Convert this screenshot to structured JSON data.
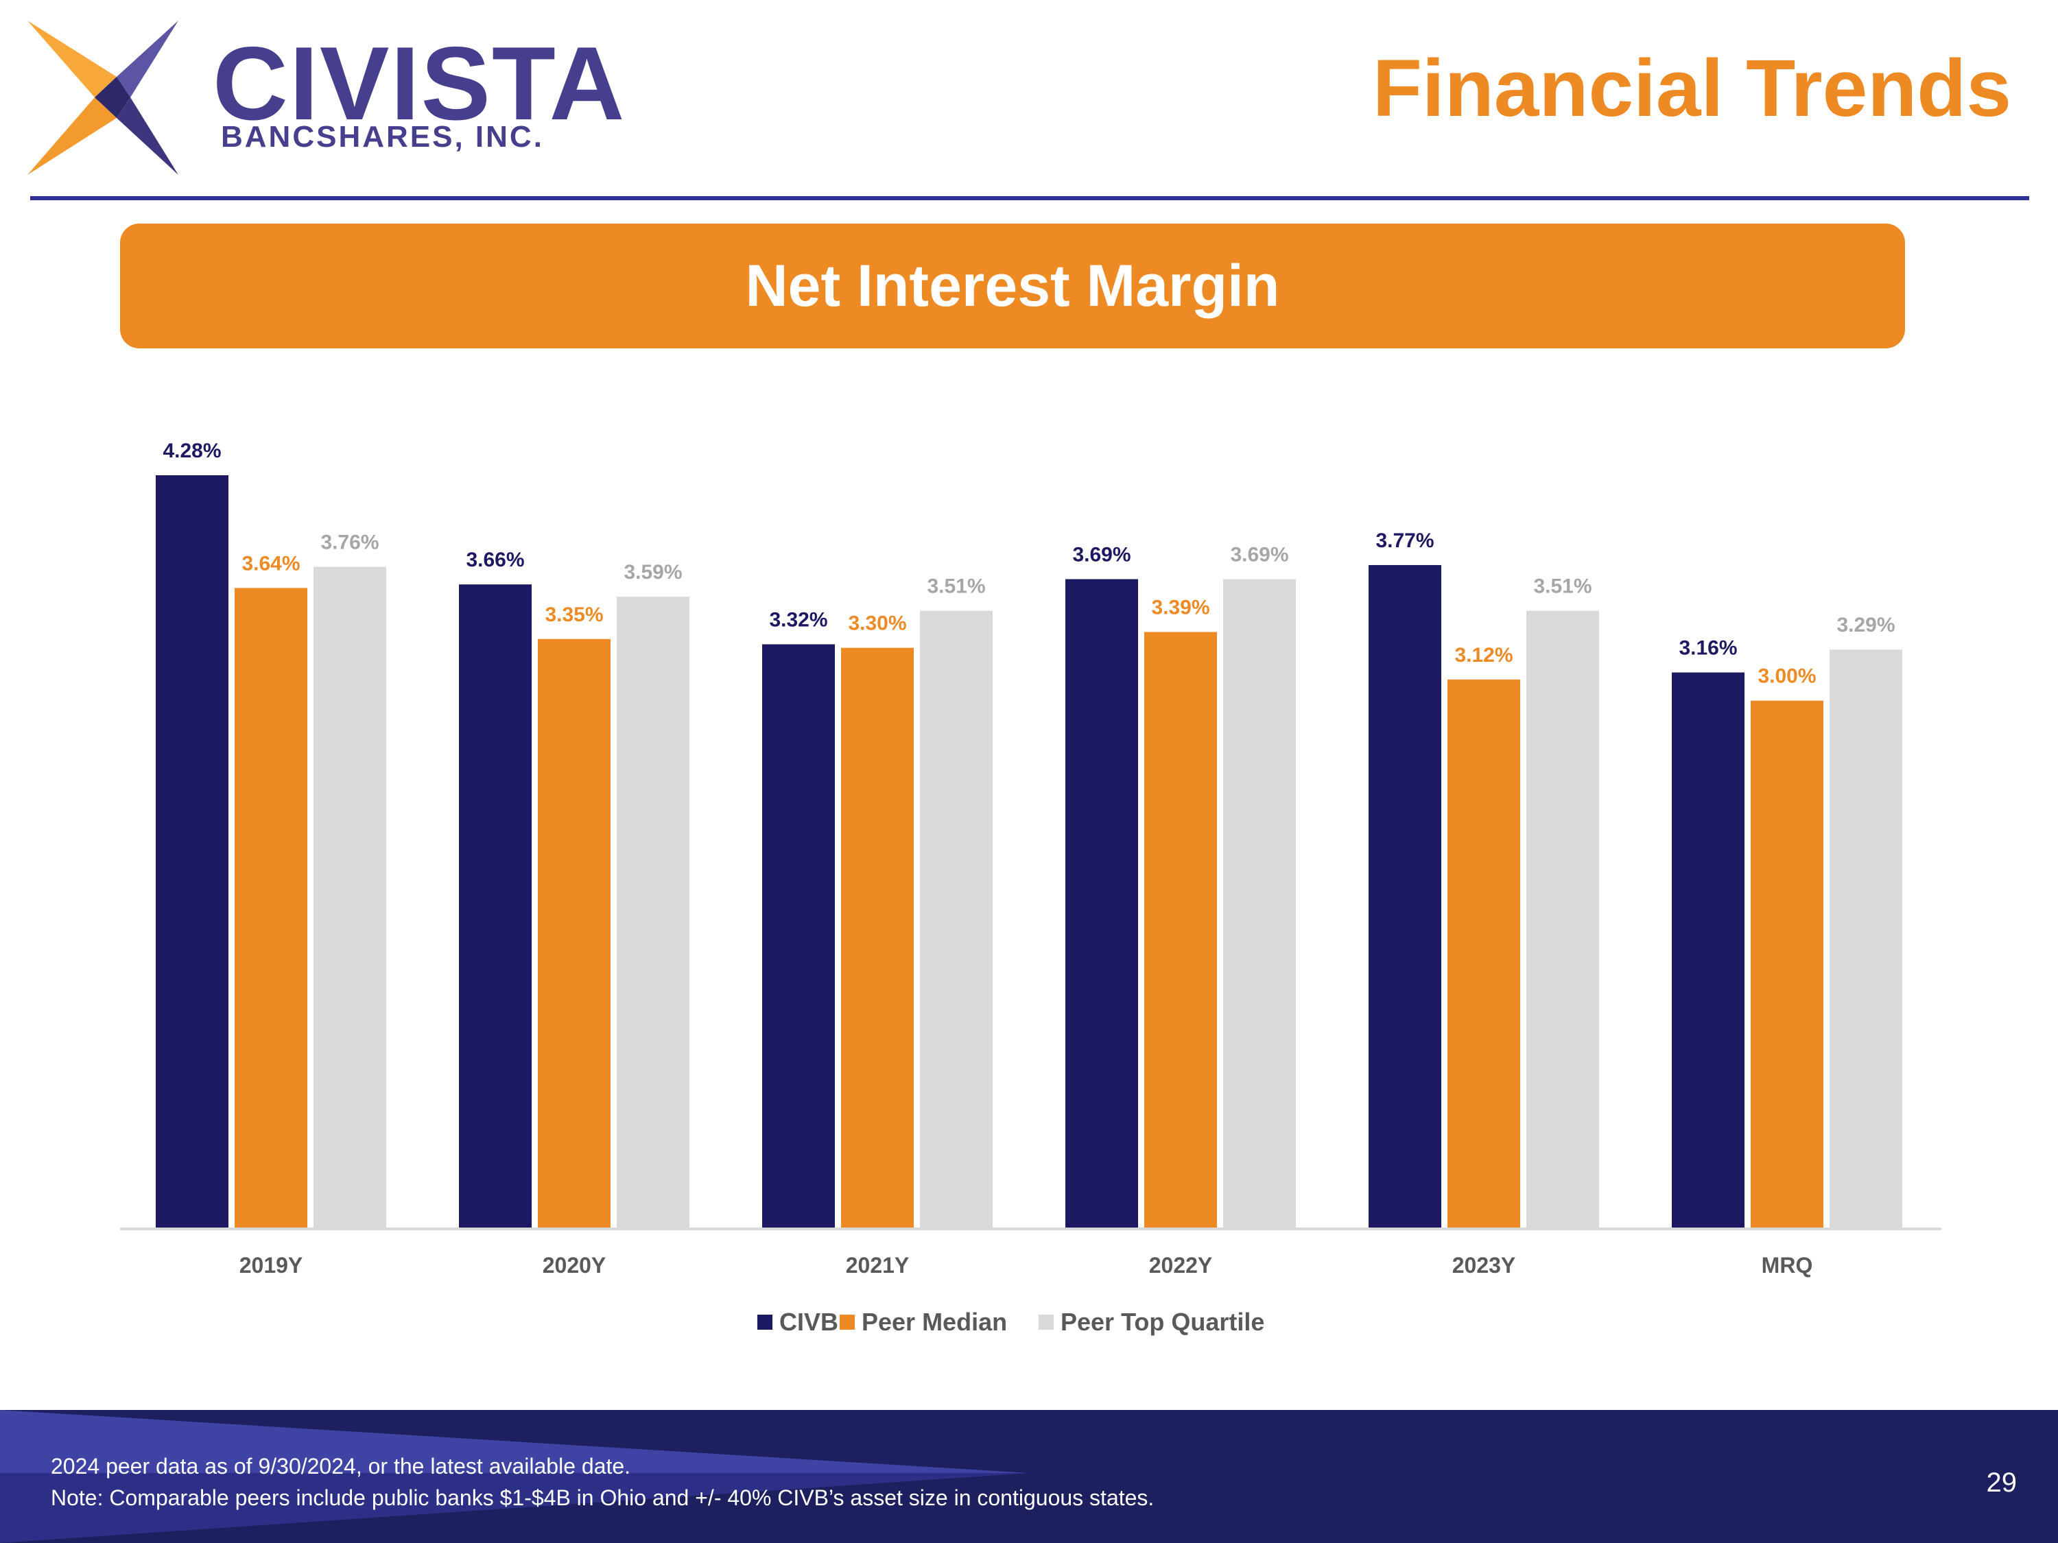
{
  "logo": {
    "name": "CIVISTA",
    "subname": "BANCSHARES, INC."
  },
  "page_title": "Financial Trends",
  "chart_data": {
    "type": "bar",
    "title": "Net Interest Margin",
    "categories": [
      "2019Y",
      "2020Y",
      "2021Y",
      "2022Y",
      "2023Y",
      "MRQ"
    ],
    "series": [
      {
        "name": "CIVB",
        "color": "#1d1862",
        "label_color": "#1d1862",
        "values": [
          4.28,
          3.66,
          3.32,
          3.69,
          3.77,
          3.16
        ],
        "labels": [
          "4.28%",
          "3.66%",
          "3.32%",
          "3.69%",
          "3.77%",
          "3.16%"
        ]
      },
      {
        "name": "Peer Median",
        "color": "#ee8a24",
        "label_color": "#ee8a24",
        "values": [
          3.64,
          3.35,
          3.3,
          3.39,
          3.12,
          3.0
        ],
        "labels": [
          "3.64%",
          "3.35%",
          "3.30%",
          "3.39%",
          "3.12%",
          "3.00%"
        ]
      },
      {
        "name": "Peer Top Quartile",
        "color": "#d9d9d9",
        "label_color": "#a6a6a6",
        "values": [
          3.76,
          3.59,
          3.51,
          3.69,
          3.51,
          3.29
        ],
        "labels": [
          "3.76%",
          "3.59%",
          "3.51%",
          "3.69%",
          "3.51%",
          "3.29%"
        ]
      }
    ],
    "ylim": [
      0,
      4.28
    ],
    "grid": false,
    "legend": "bottom-center",
    "xlabel": "",
    "ylabel": ""
  },
  "footer": {
    "note_1": "2024 peer data as of  9/30/2024, or the latest available date.",
    "note_2": "Note: Comparable peers include public banks $1-$4B in Ohio and +/- 40% CIVB’s asset size in contiguous states.",
    "page_number": "29"
  },
  "colors": {
    "accent": "#ee8a24",
    "brand": "#2e3191",
    "navy": "#1d1862"
  }
}
